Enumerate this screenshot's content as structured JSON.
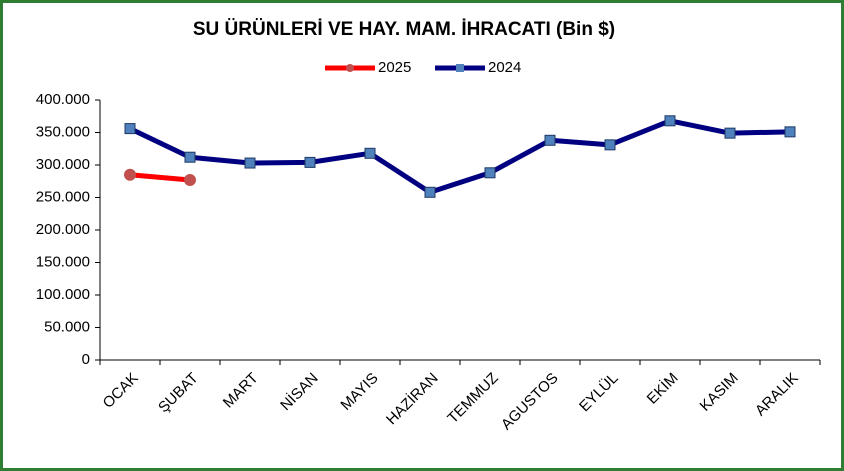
{
  "chart_data": {
    "type": "line",
    "title": "SU ÜRÜNLERİ  VE HAY.  MAM. İHRACATI  (Bin $)",
    "categories": [
      "OCAK",
      "ŞUBAT",
      "MART",
      "NİSAN",
      "MAYIS",
      "HAZİRAN",
      "TEMMUZ",
      "AGUSTOS",
      "EYLÜL",
      "EKİM",
      "KASIM",
      "ARALIK"
    ],
    "series": [
      {
        "name": "2025",
        "color": "#ff0000",
        "marker": "circle",
        "marker_color": "#c0504d",
        "values": [
          285000,
          277000,
          null,
          null,
          null,
          null,
          null,
          null,
          null,
          null,
          null,
          null
        ]
      },
      {
        "name": "2024",
        "color": "#000080",
        "marker": "square",
        "marker_color": "#4f81bd",
        "values": [
          356000,
          312000,
          303000,
          304000,
          318000,
          258000,
          288000,
          338000,
          331000,
          368000,
          349000,
          351000
        ]
      }
    ],
    "ylim": [
      0,
      400000
    ],
    "yticks": [
      0,
      {
        "value": 50000,
        "label": "50.000"
      },
      {
        "value": 100000,
        "label": "100.000"
      },
      {
        "value": 150000,
        "label": "150.000"
      },
      {
        "value": 200000,
        "label": "200.000"
      },
      {
        "value": 250000,
        "label": "250.000"
      },
      {
        "value": 300000,
        "label": "300.000"
      },
      {
        "value": 350000,
        "label": "350.000"
      },
      {
        "value": 400000,
        "label": "400.000"
      }
    ],
    "legend": "top",
    "grid": false
  }
}
